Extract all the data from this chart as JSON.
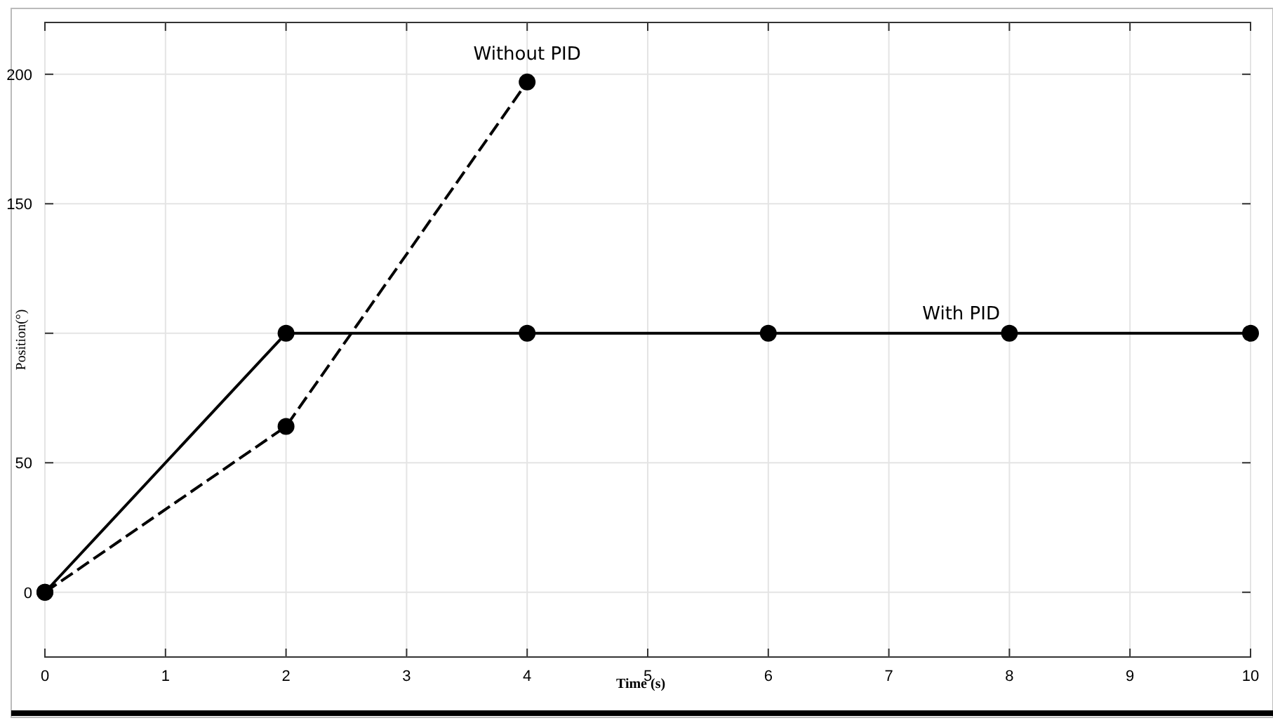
{
  "chart_data": {
    "type": "line",
    "xlabel": "Time (s)",
    "ylabel": "Position(°)",
    "xlim": [
      0,
      10
    ],
    "xticks": [
      0,
      1,
      2,
      3,
      4,
      5,
      6,
      7,
      8,
      9,
      10
    ],
    "ylim": [
      -25,
      220
    ],
    "yticks": [
      0,
      50,
      {
        "value": 100,
        "label": null
      },
      150,
      200
    ],
    "grid": true,
    "marker": "circle",
    "series": [
      {
        "name": "With PID",
        "color": "#000000",
        "line_style": "solid",
        "x": [
          0,
          2,
          4,
          6,
          8,
          10
        ],
        "values": [
          0,
          100,
          100,
          100,
          100,
          100
        ]
      },
      {
        "name": "Without PID",
        "color": "#000000",
        "line_style": "dashed",
        "x": [
          0,
          2,
          4
        ],
        "values": [
          0,
          64,
          197
        ]
      }
    ]
  }
}
